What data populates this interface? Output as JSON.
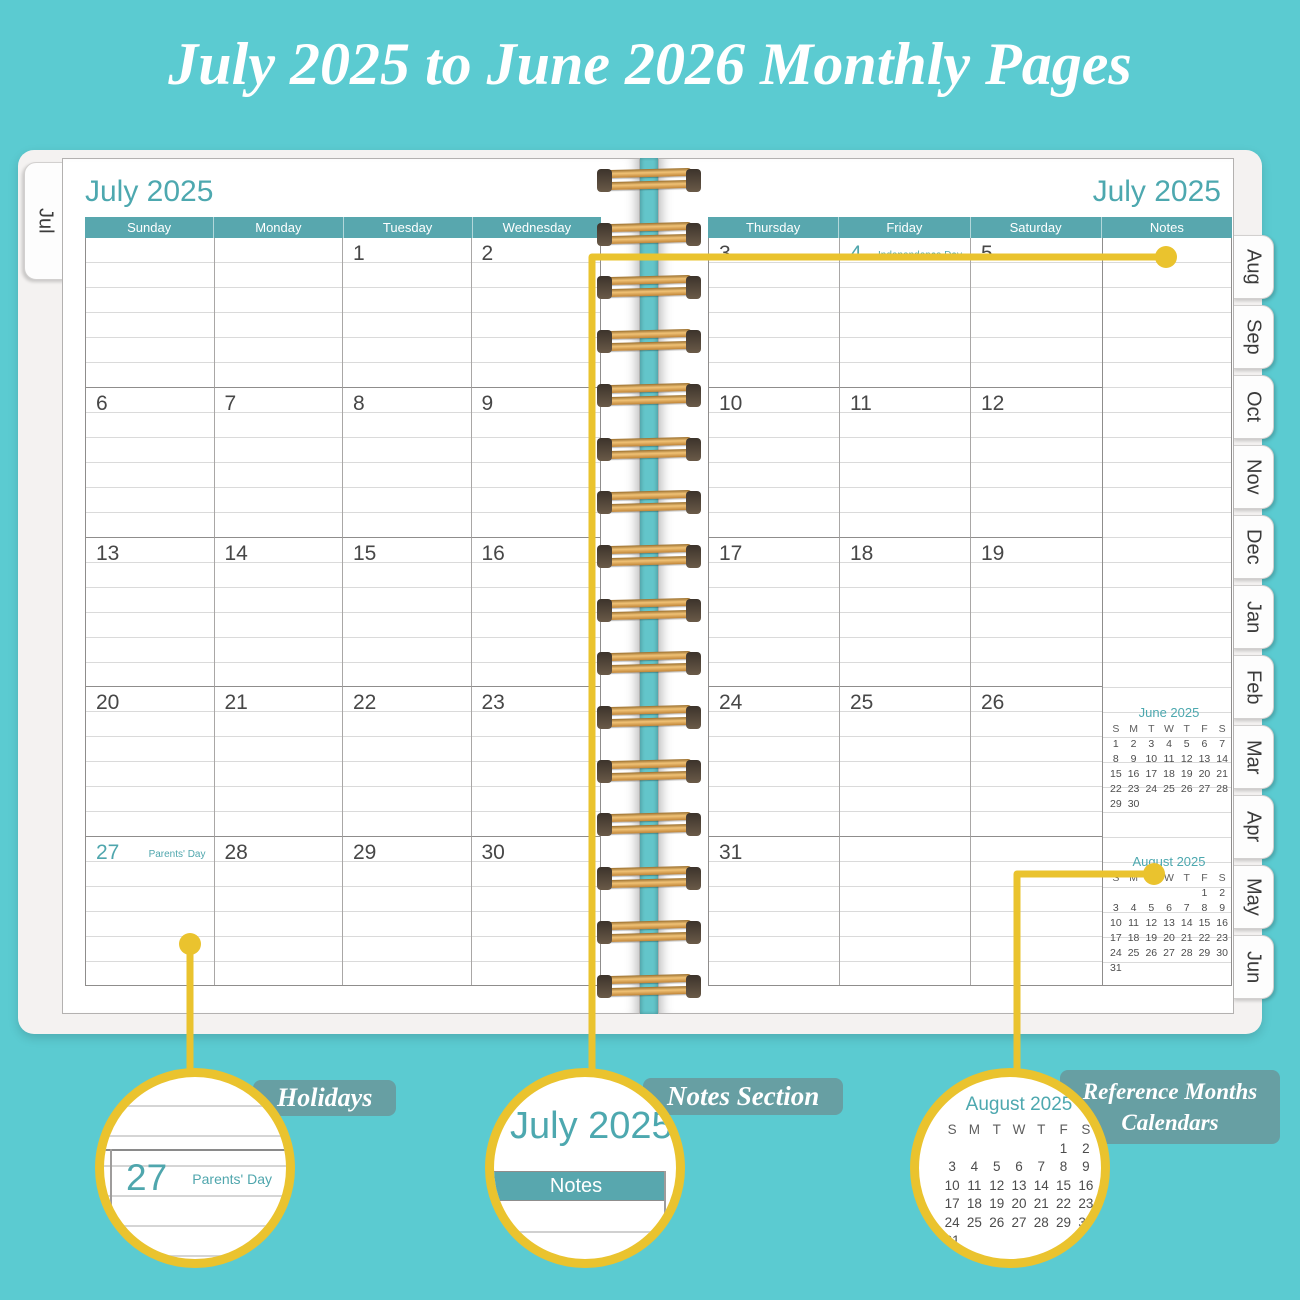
{
  "page_title": "July 2025 to June 2026 Monthly Pages",
  "planner": {
    "left_tab": "Jul",
    "right_tabs": [
      "Aug",
      "Sep",
      "Oct",
      "Nov",
      "Dec",
      "Jan",
      "Feb",
      "Mar",
      "Apr",
      "May",
      "Jun"
    ],
    "left_page": {
      "month_title": "July 2025",
      "day_headers": [
        "Sunday",
        "Monday",
        "Tuesday",
        "Wednesday"
      ],
      "weeks": [
        [
          {
            "d": ""
          },
          {
            "d": ""
          },
          {
            "d": "1"
          },
          {
            "d": "2"
          }
        ],
        [
          {
            "d": "6"
          },
          {
            "d": "7"
          },
          {
            "d": "8"
          },
          {
            "d": "9"
          }
        ],
        [
          {
            "d": "13"
          },
          {
            "d": "14"
          },
          {
            "d": "15"
          },
          {
            "d": "16"
          }
        ],
        [
          {
            "d": "20"
          },
          {
            "d": "21"
          },
          {
            "d": "22"
          },
          {
            "d": "23"
          }
        ],
        [
          {
            "d": "27",
            "h": "Parents' Day"
          },
          {
            "d": "28"
          },
          {
            "d": "29"
          },
          {
            "d": "30"
          }
        ]
      ]
    },
    "right_page": {
      "month_title": "July 2025",
      "day_headers": [
        "Thursday",
        "Friday",
        "Saturday",
        "Notes"
      ],
      "weeks": [
        [
          {
            "d": "3"
          },
          {
            "d": "4",
            "h": "Independence Day"
          },
          {
            "d": "5"
          }
        ],
        [
          {
            "d": "10"
          },
          {
            "d": "11"
          },
          {
            "d": "12"
          }
        ],
        [
          {
            "d": "17"
          },
          {
            "d": "18"
          },
          {
            "d": "19"
          }
        ],
        [
          {
            "d": "24"
          },
          {
            "d": "25"
          },
          {
            "d": "26"
          }
        ],
        [
          {
            "d": "31"
          },
          {
            "d": ""
          },
          {
            "d": ""
          }
        ]
      ],
      "mini_calendars": [
        {
          "title": "June 2025",
          "day_letters": [
            "S",
            "M",
            "T",
            "W",
            "T",
            "F",
            "S"
          ],
          "weeks": [
            [
              "1",
              "2",
              "3",
              "4",
              "5",
              "6",
              "7"
            ],
            [
              "8",
              "9",
              "10",
              "11",
              "12",
              "13",
              "14"
            ],
            [
              "15",
              "16",
              "17",
              "18",
              "19",
              "20",
              "21"
            ],
            [
              "22",
              "23",
              "24",
              "25",
              "26",
              "27",
              "28"
            ],
            [
              "29",
              "30",
              "",
              "",
              "",
              "",
              ""
            ]
          ]
        },
        {
          "title": "August 2025",
          "day_letters": [
            "S",
            "M",
            "T",
            "W",
            "T",
            "F",
            "S"
          ],
          "weeks": [
            [
              "",
              "",
              "",
              "",
              "",
              "1",
              "2"
            ],
            [
              "3",
              "4",
              "5",
              "6",
              "7",
              "8",
              "9"
            ],
            [
              "10",
              "11",
              "12",
              "13",
              "14",
              "15",
              "16"
            ],
            [
              "17",
              "18",
              "19",
              "20",
              "21",
              "22",
              "23"
            ],
            [
              "24",
              "25",
              "26",
              "27",
              "28",
              "29",
              "30"
            ],
            [
              "31",
              "",
              "",
              "",
              "",
              "",
              ""
            ]
          ]
        }
      ]
    }
  },
  "callouts": {
    "holidays": {
      "label": "Holidays",
      "example_date": "27",
      "example_holiday": "Parents' Day"
    },
    "notes": {
      "label": "Notes Section",
      "month": "July 2025",
      "header": "Notes"
    },
    "reference": {
      "label": "Reference Months Calendars"
    }
  },
  "colors": {
    "background": "#5BCBD1",
    "header_bar": "#58A7AE",
    "month_title": "#4DA8AF",
    "holiday_teal": "#4FA6AD",
    "callout_yellow": "#EAC32E",
    "banner_teal": "#71A0A3",
    "date_gray": "#474747",
    "spiral_gold": "#E2A855"
  }
}
